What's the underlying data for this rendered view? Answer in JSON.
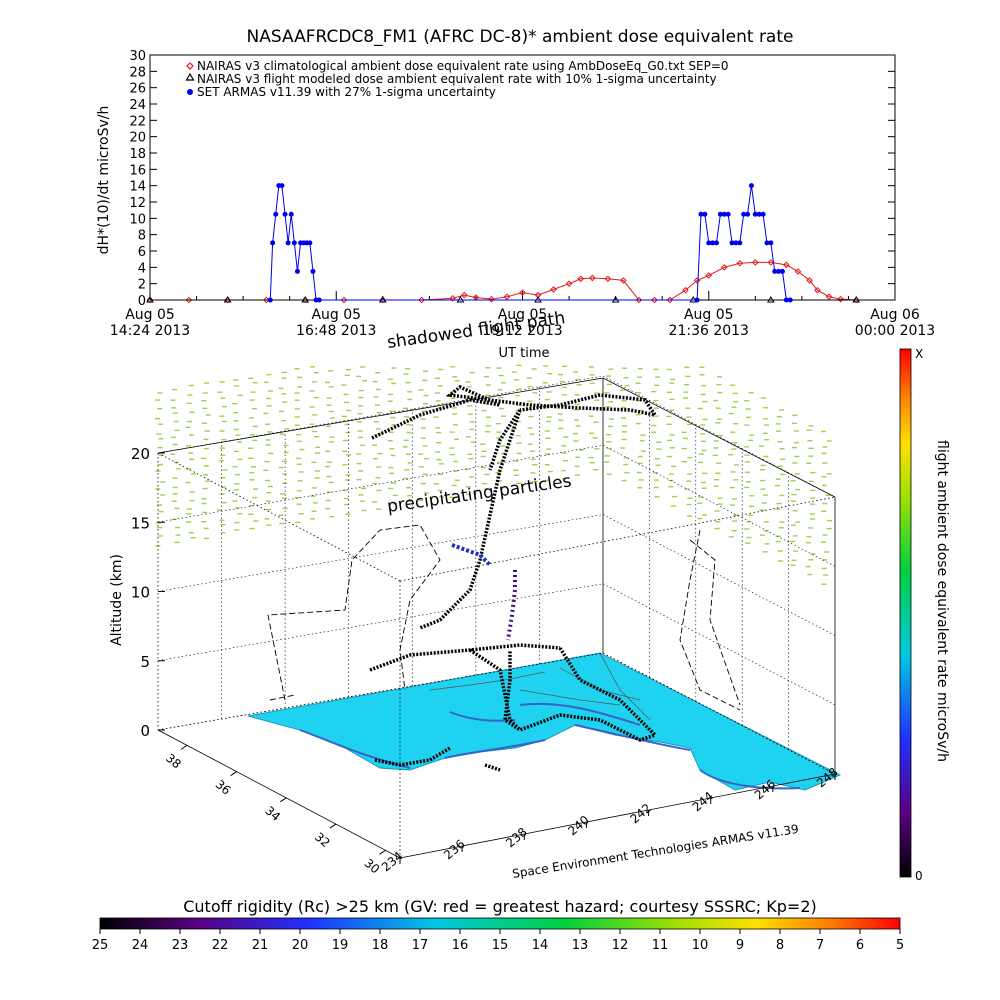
{
  "chart_data": [
    {
      "type": "line",
      "title": "NASAAFRCDC8_FM1 (AFRC DC-8)* ambient dose equivalent rate",
      "ylabel": "dH*(10)/dt microSv/h",
      "xlabel": "UT time",
      "ylim": [
        0,
        30
      ],
      "yticks": [
        "0",
        "2",
        "4",
        "6",
        "8",
        "10",
        "12",
        "14",
        "16",
        "18",
        "20",
        "22",
        "24",
        "26",
        "28",
        "30"
      ],
      "xlim": [
        0,
        9.6
      ],
      "xticks": [
        {
          "l1": "Aug 05",
          "l2": "14:24 2013",
          "v": 0
        },
        {
          "l1": "Aug 05",
          "l2": "16:48 2013",
          "v": 2.4
        },
        {
          "l1": "Aug 05",
          "l2": "19:12 2013",
          "v": 4.8
        },
        {
          "l1": "Aug 05",
          "l2": "21:36 2013",
          "v": 7.2
        },
        {
          "l1": "Aug 06",
          "l2": "00:00 2013",
          "v": 9.6
        }
      ],
      "legend_position": "top-left",
      "series": [
        {
          "name": "NAIRAS v3 climatological ambient dose equivalent rate using AmbDoseEq_G0.txt SEP=0",
          "color": "#e41a1c",
          "marker": "diamond",
          "x": [
            0.0,
            0.5,
            1.0,
            1.5,
            2.0,
            2.5,
            3.0,
            3.5,
            3.9,
            4.05,
            4.2,
            4.4,
            4.6,
            4.8,
            5.0,
            5.2,
            5.4,
            5.55,
            5.7,
            5.9,
            6.1,
            6.3,
            6.5,
            6.7,
            6.9,
            7.05,
            7.2,
            7.4,
            7.6,
            7.8,
            8.0,
            8.2,
            8.35,
            8.5,
            8.6,
            8.75,
            8.9,
            9.1
          ],
          "y": [
            0,
            0,
            0,
            0,
            0,
            0,
            0,
            0,
            0.2,
            0.6,
            0.3,
            0.1,
            0.4,
            0.9,
            0.6,
            1.3,
            2.0,
            2.6,
            2.7,
            2.6,
            2.4,
            0,
            0,
            0,
            1.2,
            2.4,
            3.0,
            4.0,
            4.5,
            4.6,
            4.6,
            4.3,
            3.5,
            2.4,
            1.2,
            0.4,
            0.1,
            0
          ]
        },
        {
          "name": "NAIRAS v3 flight modeled dose ambient equivalent rate with 10% 1-sigma uncertainty",
          "color": "#000000",
          "marker": "triangle",
          "x": [
            0.0,
            1.0,
            2.0,
            3.0,
            4.0,
            5.0,
            6.0,
            7.0,
            8.0,
            9.1
          ],
          "y": [
            0,
            0,
            0,
            0,
            0,
            0,
            0,
            0,
            0,
            0
          ]
        },
        {
          "name": "SET ARMAS v11.39 with 27% 1-sigma uncertainty",
          "color": "#0000ee",
          "marker": "circle",
          "x": [
            1.55,
            1.58,
            1.62,
            1.66,
            1.7,
            1.74,
            1.78,
            1.82,
            1.86,
            1.9,
            1.94,
            1.98,
            2.02,
            2.06,
            2.1,
            2.14,
            2.18,
            7.05,
            7.1,
            7.15,
            7.2,
            7.25,
            7.3,
            7.35,
            7.4,
            7.45,
            7.5,
            7.55,
            7.6,
            7.65,
            7.7,
            7.75,
            7.8,
            7.85,
            7.9,
            7.95,
            8.0,
            8.05,
            8.1,
            8.15,
            8.2,
            8.25
          ],
          "y": [
            0,
            7,
            10.5,
            14,
            14,
            10.5,
            7,
            10.5,
            7,
            3.5,
            7,
            7,
            7,
            7,
            3.5,
            0,
            0,
            0,
            10.5,
            10.5,
            7,
            7,
            7,
            10.5,
            10.5,
            10.5,
            7,
            7,
            7,
            10.5,
            10.5,
            14,
            10.5,
            10.5,
            10.5,
            7,
            7,
            3.5,
            3.5,
            3.5,
            0,
            0
          ]
        }
      ]
    },
    {
      "type": "scatter",
      "chart_kind": "3D flight track over cutoff rigidity map",
      "zlabel": "Altitude (km)",
      "zticks": [
        "0",
        "5",
        "10",
        "15",
        "20"
      ],
      "zlim": [
        0,
        20
      ],
      "xticks": [
        "234",
        "236",
        "238",
        "240",
        "242",
        "244",
        "246",
        "248"
      ],
      "yticks": [
        "30",
        "32",
        "34",
        "36",
        "38"
      ],
      "credit": "Space Environment Technologies ARMAS v11.39",
      "annotations": [
        "shadowed flight path",
        "precipitating particles"
      ],
      "colorbar_label": "flight ambient dose equivalent rate microSv/h",
      "colorbar_ticks": [
        "X",
        "0"
      ],
      "surface_color": "#1ed2f0",
      "coast_color": "#3a63c8",
      "particle_color": "#9bd24a",
      "track_color": "#000000",
      "grid": true
    },
    {
      "type": "colorbar",
      "title": "Cutoff rigidity (Rc) >25 km (GV: red = greatest hazard; courtesy SSSRC; Kp=2)",
      "ticks": [
        "25",
        "24",
        "23",
        "22",
        "21",
        "20",
        "19",
        "18",
        "17",
        "16",
        "15",
        "14",
        "13",
        "12",
        "11",
        "10",
        "9",
        "8",
        "7",
        "6",
        "5"
      ]
    }
  ]
}
